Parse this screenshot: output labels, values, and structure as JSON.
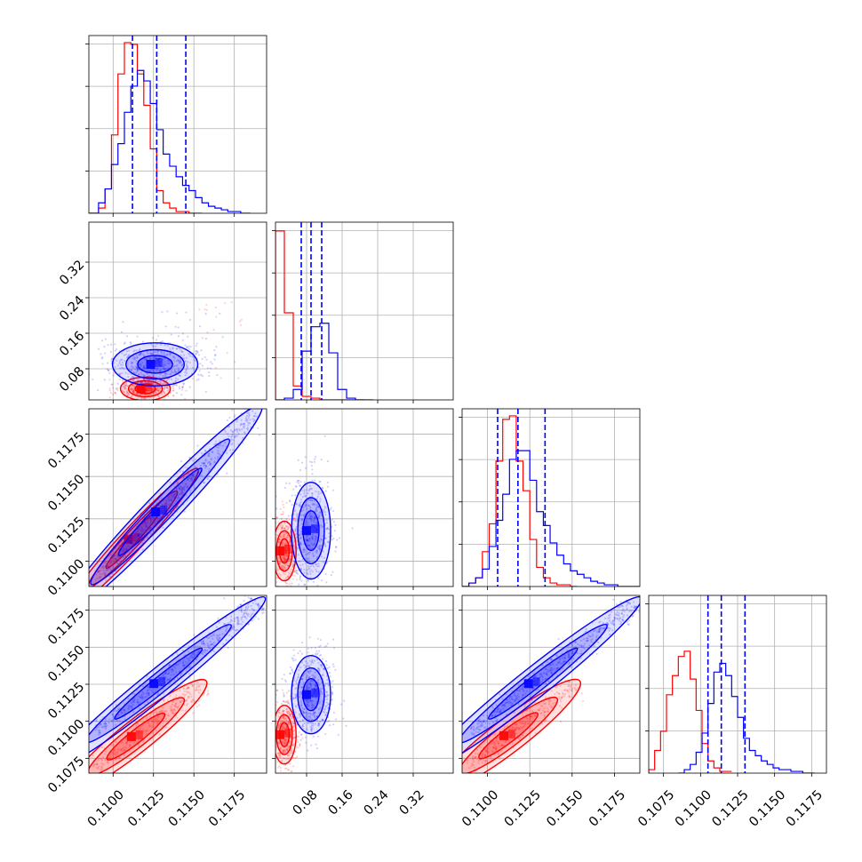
{
  "chart_data": {
    "type": "corner",
    "colors": {
      "red": "#ff0000",
      "blue": "#0000ff",
      "grid": "#b0b0b0"
    },
    "parameters": [
      "p0",
      "p1",
      "p2",
      "p3"
    ],
    "axes": {
      "p0": {
        "range": [
          0.1085,
          0.1195
        ],
        "ticks": [
          0.11,
          0.1125,
          0.115,
          0.1175
        ],
        "tick_labels": [
          "0.1100",
          "0.1125",
          "0.1150",
          "0.1175"
        ]
      },
      "p1": {
        "range": [
          0.01,
          0.41
        ],
        "ticks": [
          0.08,
          0.16,
          0.24,
          0.32
        ],
        "tick_labels": [
          "0.08",
          "0.16",
          "0.24",
          "0.32"
        ]
      },
      "p2": {
        "range": [
          0.1085,
          0.119
        ],
        "ticks": [
          0.11,
          0.1125,
          0.115,
          0.1175
        ],
        "tick_labels": [
          "0.1100",
          "0.1125",
          "0.1150",
          "0.1175"
        ]
      },
      "p3": {
        "range": [
          0.1065,
          0.1185
        ],
        "ticks": [
          0.1075,
          0.11,
          0.1125,
          0.115,
          0.1175
        ],
        "tick_labels": [
          "0.1075",
          "0.1100",
          "0.1125",
          "0.1150",
          "0.1175"
        ]
      }
    },
    "histograms": {
      "p0": {
        "red": {
          "edges": [
            0.1085,
            0.1091,
            0.1095,
            0.1099,
            0.1103,
            0.1107,
            0.1111,
            0.1115,
            0.1119,
            0.1123,
            0.1127,
            0.1131,
            0.1135,
            0.1139,
            0.1143,
            0.1147,
            0.1151,
            0.1155
          ],
          "counts": [
            0,
            0.03,
            0.14,
            0.45,
            0.8,
            0.98,
            0.97,
            0.8,
            0.62,
            0.37,
            0.13,
            0.06,
            0.03,
            0.01,
            0.01,
            0,
            0
          ]
        },
        "blue": {
          "edges": [
            0.1085,
            0.1091,
            0.1095,
            0.1099,
            0.1103,
            0.1107,
            0.1111,
            0.1115,
            0.1119,
            0.1123,
            0.1127,
            0.1131,
            0.1135,
            0.1139,
            0.1143,
            0.1147,
            0.1151,
            0.1155,
            0.1159,
            0.1163,
            0.1167,
            0.1171,
            0.1175,
            0.1179,
            0.1185
          ],
          "counts": [
            0,
            0.06,
            0.14,
            0.28,
            0.4,
            0.58,
            0.73,
            0.82,
            0.76,
            0.63,
            0.48,
            0.34,
            0.27,
            0.21,
            0.16,
            0.13,
            0.09,
            0.06,
            0.04,
            0.03,
            0.02,
            0.01,
            0.01,
            0,
            0
          ]
        },
        "quantiles": [
          0.1112,
          0.1127,
          0.1145
        ]
      },
      "p1": {
        "red": {
          "edges": [
            0.01,
            0.03,
            0.05,
            0.07,
            0.09,
            0.11,
            0.13,
            0.15,
            0.17,
            0.19,
            0.21
          ],
          "counts": [
            0.97,
            0.5,
            0.08,
            0.02,
            0.01,
            0,
            0,
            0,
            0,
            0
          ]
        },
        "blue": {
          "edges": [
            0.01,
            0.03,
            0.05,
            0.07,
            0.09,
            0.11,
            0.13,
            0.15,
            0.17,
            0.19,
            0.21,
            0.23
          ],
          "counts": [
            0,
            0.01,
            0.06,
            0.28,
            0.42,
            0.44,
            0.27,
            0.06,
            0.01,
            0,
            0
          ]
        },
        "quantiles": [
          0.068,
          0.09,
          0.114
        ]
      },
      "p2": {
        "red": {
          "edges": [
            0.1085,
            0.1089,
            0.1093,
            0.1097,
            0.1101,
            0.1105,
            0.1109,
            0.1113,
            0.1117,
            0.1121,
            0.1125,
            0.1129,
            0.1133,
            0.1137,
            0.1141,
            0.1145,
            0.1149,
            0.1153
          ],
          "counts": [
            0,
            0.02,
            0.05,
            0.2,
            0.36,
            0.72,
            0.96,
            0.98,
            0.72,
            0.55,
            0.27,
            0.11,
            0.05,
            0.02,
            0.01,
            0.01,
            0
          ]
        },
        "blue": {
          "edges": [
            0.1085,
            0.1089,
            0.1093,
            0.1097,
            0.1101,
            0.1105,
            0.1109,
            0.1113,
            0.1117,
            0.1121,
            0.1125,
            0.1129,
            0.1133,
            0.1137,
            0.1141,
            0.1145,
            0.1149,
            0.1153,
            0.1157,
            0.1161,
            0.1165,
            0.1169,
            0.1173,
            0.1177,
            0.1181,
            0.119
          ],
          "counts": [
            0,
            0.02,
            0.05,
            0.1,
            0.23,
            0.38,
            0.53,
            0.73,
            0.78,
            0.78,
            0.61,
            0.43,
            0.35,
            0.25,
            0.18,
            0.13,
            0.09,
            0.07,
            0.05,
            0.03,
            0.02,
            0.01,
            0.01,
            0,
            0
          ]
        },
        "quantiles": [
          0.1106,
          0.1118,
          0.1134
        ]
      },
      "p3": {
        "red": {
          "edges": [
            0.1065,
            0.1069,
            0.1073,
            0.1077,
            0.1081,
            0.1085,
            0.1089,
            0.1093,
            0.1097,
            0.1101,
            0.1105,
            0.1109,
            0.1113,
            0.1117,
            0.1121
          ],
          "counts": [
            0.02,
            0.13,
            0.24,
            0.45,
            0.56,
            0.67,
            0.7,
            0.54,
            0.36,
            0.17,
            0.07,
            0.03,
            0.01,
            0.01
          ]
        },
        "blue": {
          "edges": [
            0.1085,
            0.1089,
            0.1093,
            0.1097,
            0.1101,
            0.1105,
            0.1109,
            0.1113,
            0.1117,
            0.1121,
            0.1125,
            0.1129,
            0.1133,
            0.1137,
            0.1141,
            0.1145,
            0.1149,
            0.1153,
            0.1157,
            0.1161,
            0.1165,
            0.1169,
            0.1173,
            0.1177
          ],
          "counts": [
            0,
            0.02,
            0.05,
            0.12,
            0.23,
            0.4,
            0.58,
            0.63,
            0.56,
            0.44,
            0.32,
            0.2,
            0.13,
            0.1,
            0.07,
            0.05,
            0.03,
            0.02,
            0.02,
            0.01,
            0.01,
            0,
            0
          ]
        },
        "quantiles": [
          0.1105,
          0.1114,
          0.113
        ]
      }
    },
    "scatter_panels": [
      {
        "x": "p0",
        "y": "p1",
        "red": {
          "kind": "blob",
          "cx": 0.112,
          "cy": 0.035,
          "sx": 0.0007,
          "sy": 0.012,
          "n": 420,
          "tail": [
            0.118,
            0.23
          ]
        },
        "blue": {
          "kind": "blob",
          "cx": 0.1126,
          "cy": 0.09,
          "sx": 0.0012,
          "sy": 0.022,
          "n": 520,
          "tail": [
            0.117,
            0.21
          ]
        }
      },
      {
        "x": "p0",
        "y": "p2",
        "red": {
          "kind": "line",
          "x0": 0.1089,
          "y0": 0.1089,
          "x1": 0.115,
          "y1": 0.1152,
          "spread": 0.0002,
          "n": 260
        },
        "blue": {
          "kind": "line",
          "x0": 0.1093,
          "y0": 0.1093,
          "x1": 0.1188,
          "y1": 0.1188,
          "spread": 0.00028,
          "n": 520
        }
      },
      {
        "x": "p1",
        "y": "p2",
        "red": {
          "kind": "blob",
          "cx": 0.03,
          "cy": 0.1106,
          "sx": 0.012,
          "sy": 0.0008,
          "n": 380
        },
        "blue": {
          "kind": "blob",
          "cx": 0.09,
          "cy": 0.1118,
          "sx": 0.02,
          "sy": 0.0013,
          "n": 500
        }
      },
      {
        "x": "p0",
        "y": "p3",
        "red": {
          "kind": "line",
          "x0": 0.1089,
          "y0": 0.1068,
          "x1": 0.1155,
          "y1": 0.1125,
          "spread": 0.00028,
          "n": 320
        },
        "blue": {
          "kind": "line",
          "x0": 0.109,
          "y0": 0.1092,
          "x1": 0.119,
          "y1": 0.118,
          "spread": 0.00025,
          "n": 520
        }
      },
      {
        "x": "p1",
        "y": "p3",
        "red": {
          "kind": "blob",
          "cx": 0.03,
          "cy": 0.1091,
          "sx": 0.012,
          "sy": 0.0009,
          "n": 380
        },
        "blue": {
          "kind": "blob",
          "cx": 0.09,
          "cy": 0.1118,
          "sx": 0.02,
          "sy": 0.0012,
          "n": 500
        }
      },
      {
        "x": "p2",
        "y": "p3",
        "red": {
          "kind": "line",
          "x0": 0.1088,
          "y0": 0.1069,
          "x1": 0.1152,
          "y1": 0.1125,
          "spread": 0.00028,
          "n": 320
        },
        "blue": {
          "kind": "line",
          "x0": 0.109,
          "y0": 0.1092,
          "x1": 0.1187,
          "y1": 0.118,
          "spread": 0.00025,
          "n": 520
        }
      }
    ]
  }
}
